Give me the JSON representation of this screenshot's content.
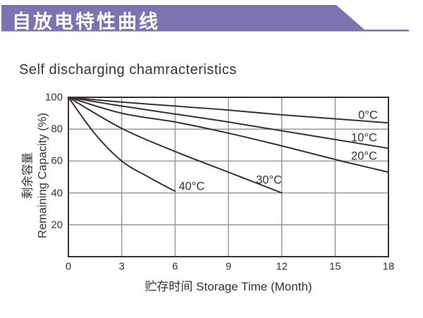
{
  "header": {
    "title": "自放电特性曲线",
    "banner_color": "#7b74b1"
  },
  "subtitle": "Self discharging chamracteristics",
  "chart_data": {
    "type": "line",
    "title": "Self discharging chamracteristics",
    "xlabel": "贮存时间 Storage Time (Month)",
    "ylabel_line1": "剩余容量",
    "ylabel_line2": "Remaining Capacity (%)",
    "xlim": [
      0,
      18
    ],
    "ylim": [
      0,
      100
    ],
    "x_ticks": [
      0,
      3,
      6,
      9,
      12,
      15,
      18
    ],
    "y_ticks": [
      100,
      80,
      60,
      40,
      20
    ],
    "grid": true,
    "legend_position": "inline-curve-labels",
    "colors": {
      "curve": "#3a3231",
      "grid": "#8f8f8f",
      "axis": "#3a3231",
      "text": "#3a3231"
    },
    "series": [
      {
        "name": "0°C",
        "x": [
          0,
          3,
          6,
          9,
          12,
          15,
          18
        ],
        "y": [
          100,
          97,
          94.5,
          92,
          89,
          86.5,
          84
        ],
        "label": {
          "text": "0°C",
          "x": 16.3,
          "y": 88.5
        }
      },
      {
        "name": "10°C",
        "x": [
          0,
          3,
          6,
          9,
          12,
          15,
          18
        ],
        "y": [
          100,
          94.5,
          89.5,
          84.5,
          79,
          73.5,
          68
        ],
        "label": {
          "text": "10°C",
          "x": 15.9,
          "y": 74.5
        }
      },
      {
        "name": "20°C",
        "x": [
          0,
          3,
          6,
          9,
          12,
          15,
          18
        ],
        "y": [
          100,
          90,
          84.5,
          77.5,
          69.5,
          61,
          53
        ],
        "label": {
          "text": "20°C",
          "x": 15.9,
          "y": 63
        }
      },
      {
        "name": "30°C",
        "x": [
          0,
          3,
          6,
          9,
          12
        ],
        "y": [
          100,
          80.5,
          66,
          53,
          40
        ],
        "label": {
          "text": "30°C",
          "x": 10.55,
          "y": 48
        }
      },
      {
        "name": "40°C",
        "x": [
          0,
          1.5,
          3,
          4.5,
          6
        ],
        "y": [
          100,
          77,
          60,
          50,
          41
        ],
        "label": {
          "text": "40°C",
          "x": 6.2,
          "y": 44
        }
      }
    ]
  }
}
